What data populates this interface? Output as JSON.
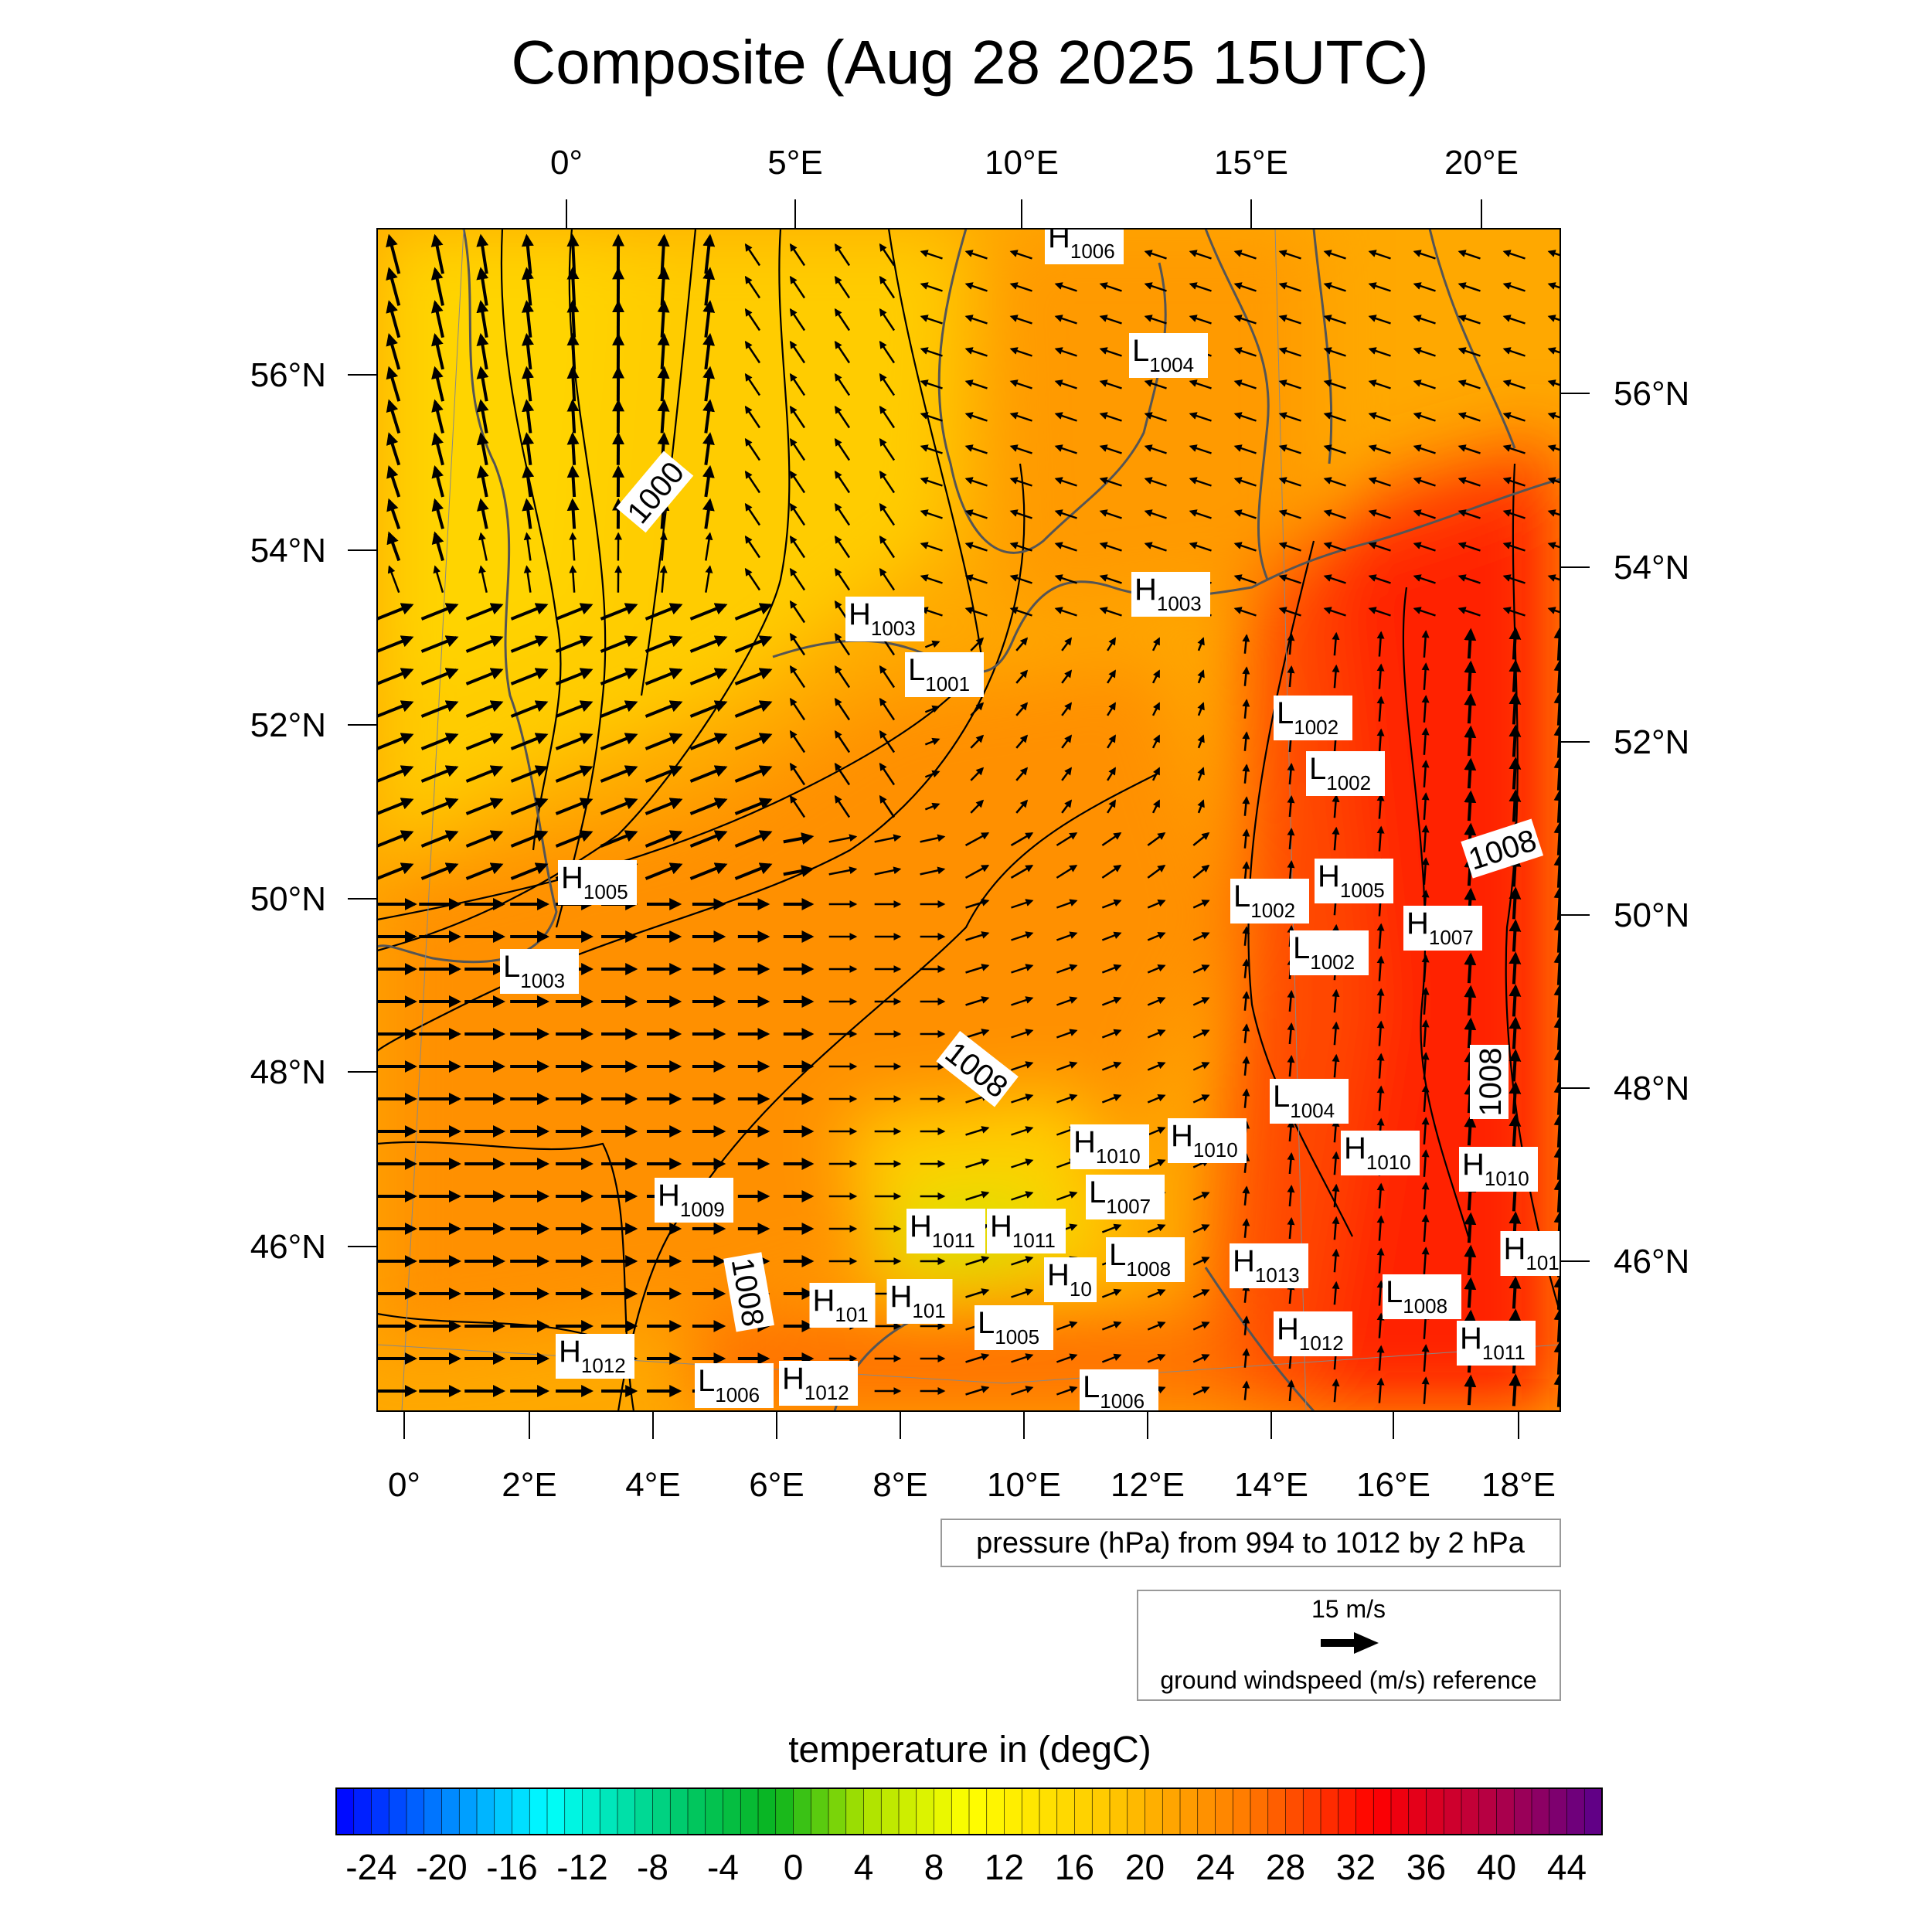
{
  "chart_data": {
    "type": "heatmap",
    "title": "Composite (Aug 28 2025 15UTC)",
    "top_lon_ticks": [
      "0°",
      "5°E",
      "10°E",
      "15°E",
      "20°E"
    ],
    "bottom_lon_ticks": [
      "0°",
      "2°E",
      "4°E",
      "6°E",
      "8°E",
      "10°E",
      "12°E",
      "14°E",
      "16°E",
      "18°E"
    ],
    "left_lat_ticks": [
      "56°N",
      "54°N",
      "52°N",
      "50°N",
      "48°N",
      "46°N"
    ],
    "right_lat_ticks": [
      "56°N",
      "54°N",
      "52°N",
      "50°N",
      "48°N",
      "46°N"
    ],
    "pressure_note": "pressure (hPa) from 994 to 1012 by 2 hPa",
    "wind_reference": {
      "speed_label": "15 m/s",
      "caption": "ground windspeed (m/s) reference",
      "value": 15
    },
    "colorbar": {
      "title": "temperature in (degC)",
      "min": -26,
      "max": 46,
      "step": 1,
      "tick_labels": [
        "-24",
        "-20",
        "-16",
        "-12",
        "-8",
        "-4",
        "0",
        "4",
        "8",
        "12",
        "16",
        "20",
        "24",
        "28",
        "32",
        "36",
        "40",
        "44"
      ]
    },
    "contour_labels": [
      "1000",
      "1008",
      "1008",
      "1008",
      "1008"
    ],
    "pressure_centers": [
      {
        "type": "H",
        "value": "1006"
      },
      {
        "type": "L",
        "value": "1004"
      },
      {
        "type": "H",
        "value": "1003"
      },
      {
        "type": "H",
        "value": "1003"
      },
      {
        "type": "L",
        "value": "1001"
      },
      {
        "type": "L",
        "value": "1002"
      },
      {
        "type": "L",
        "value": "1002"
      },
      {
        "type": "H",
        "value": "1005"
      },
      {
        "type": "H",
        "value": "1005"
      },
      {
        "type": "L",
        "value": "1002"
      },
      {
        "type": "L",
        "value": "1002"
      },
      {
        "type": "H",
        "value": "1007"
      },
      {
        "type": "L",
        "value": "1003"
      },
      {
        "type": "L",
        "value": "1004"
      },
      {
        "type": "H",
        "value": "1010"
      },
      {
        "type": "H",
        "value": "1010"
      },
      {
        "type": "H",
        "value": "1010"
      },
      {
        "type": "H",
        "value": "1010"
      },
      {
        "type": "L",
        "value": "1007"
      },
      {
        "type": "H",
        "value": "1009"
      },
      {
        "type": "H",
        "value": "1011"
      },
      {
        "type": "H",
        "value": "1011"
      },
      {
        "type": "H",
        "value": "10"
      },
      {
        "type": "L",
        "value": "1008"
      },
      {
        "type": "H",
        "value": "1013"
      },
      {
        "type": "H",
        "value": "101"
      },
      {
        "type": "L",
        "value": "1008"
      },
      {
        "type": "H",
        "value": "1011"
      },
      {
        "type": "H",
        "value": "101"
      },
      {
        "type": "H",
        "value": "101"
      },
      {
        "type": "L",
        "value": "1005"
      },
      {
        "type": "H",
        "value": "1012"
      },
      {
        "type": "H",
        "value": "1012"
      },
      {
        "type": "L",
        "value": "1006"
      },
      {
        "type": "H",
        "value": "1012"
      },
      {
        "type": "L",
        "value": "1006"
      }
    ]
  }
}
